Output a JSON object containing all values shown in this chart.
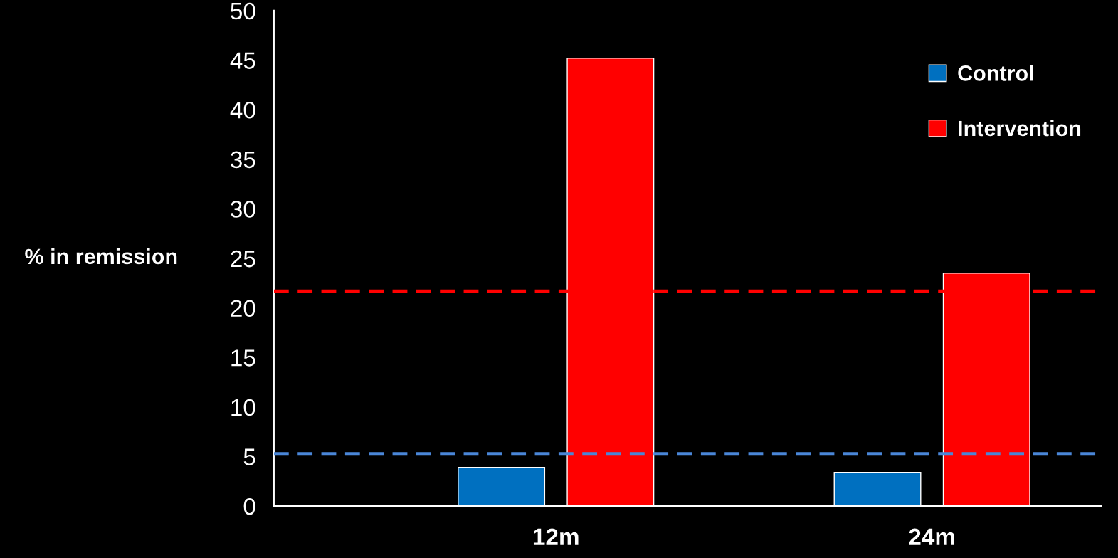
{
  "chart_data": {
    "type": "bar",
    "ylabel": "% in remission",
    "categories": [
      "12m",
      "24m"
    ],
    "series": [
      {
        "name": "Control",
        "color": "#0070c0",
        "values": [
          3.9,
          3.4
        ]
      },
      {
        "name": "Intervention",
        "color": "#ff0000",
        "values": [
          45.2,
          23.5
        ]
      }
    ],
    "ylim": [
      0,
      50
    ],
    "yticks": [
      0,
      5,
      10,
      15,
      20,
      25,
      30,
      35,
      40,
      45,
      50
    ],
    "ref_lines": [
      {
        "axis": "y",
        "value": 21.7,
        "color": "#ff0000",
        "line_style": "dashed"
      },
      {
        "axis": "y",
        "value": 5.3,
        "color": "#4a86d8",
        "line_style": "dashed"
      }
    ],
    "grid": false,
    "legend": "top right"
  }
}
